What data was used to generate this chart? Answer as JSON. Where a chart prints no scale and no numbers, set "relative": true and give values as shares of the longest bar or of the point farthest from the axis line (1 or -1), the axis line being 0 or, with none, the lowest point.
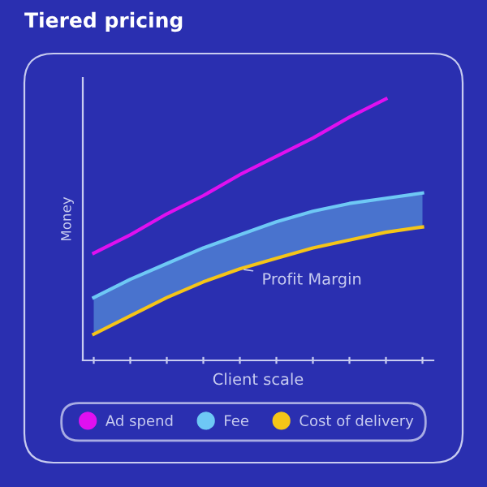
{
  "chart_data": {
    "type": "line",
    "title": "Tiered pricing",
    "xlabel": "Client scale",
    "ylabel": "Money",
    "relative": true,
    "categories": [
      null,
      null,
      null,
      null,
      null,
      null,
      null,
      null,
      null,
      null
    ],
    "series": [
      {
        "name": "Ad spend",
        "color": "#e010f0",
        "values": [
          0.41,
          0.48,
          0.56,
          0.63,
          0.71,
          0.78,
          0.85,
          0.93,
          1.0,
          null
        ]
      },
      {
        "name": "Fee",
        "color": "#6ec8f5",
        "values": [
          0.24,
          0.31,
          0.37,
          0.43,
          0.48,
          0.53,
          0.57,
          0.6,
          0.62,
          0.64
        ],
        "lower": [
          0.1,
          0.17,
          0.24,
          0.3,
          0.35,
          0.39,
          0.43,
          0.46,
          0.49,
          0.51
        ],
        "upper": [
          0.24,
          0.31,
          0.37,
          0.43,
          0.48,
          0.53,
          0.57,
          0.6,
          0.62,
          0.64
        ]
      },
      {
        "name": "Cost of delivery",
        "color": "#f5c518",
        "values": [
          0.1,
          0.17,
          0.24,
          0.3,
          0.35,
          0.39,
          0.43,
          0.46,
          0.49,
          0.51
        ]
      }
    ],
    "annotations": [
      "Profit Margin"
    ],
    "legend": "bottom",
    "grid": false,
    "tick_labels": false,
    "marker": "none",
    "line_style": "solid"
  }
}
